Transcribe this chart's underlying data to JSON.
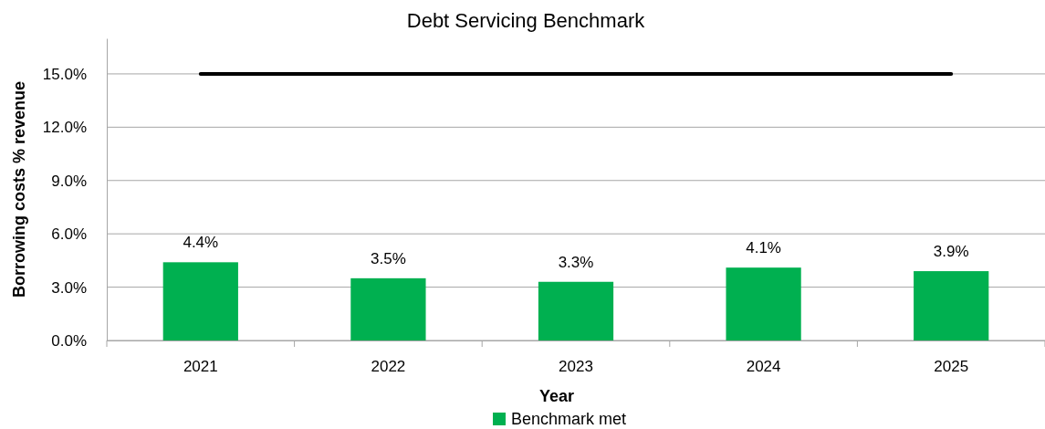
{
  "chart_data": {
    "type": "bar",
    "title": "Debt Servicing Benchmark",
    "xlabel": "Year",
    "ylabel": "Borrowing costs % revenue",
    "categories": [
      "2021",
      "2022",
      "2023",
      "2024",
      "2025"
    ],
    "series": [
      {
        "name": "Benchmark met",
        "color": "#00b050",
        "values": [
          4.4,
          3.5,
          3.3,
          4.1,
          3.9
        ]
      },
      {
        "type": "line",
        "color": "#000000",
        "values": [
          15,
          15,
          15,
          15,
          15
        ]
      }
    ],
    "value_labels": [
      "4.4%",
      "3.5%",
      "3.3%",
      "4.1%",
      "3.9%"
    ],
    "ylim": [
      0,
      17
    ],
    "yticks": [
      {
        "value": 0,
        "label": "0.0%"
      },
      {
        "value": 3,
        "label": "3.0%"
      },
      {
        "value": 6,
        "label": "6.0%"
      },
      {
        "value": 9,
        "label": "9.0%"
      },
      {
        "value": 12,
        "label": "12.0%"
      },
      {
        "value": 15,
        "label": "15.0%"
      }
    ],
    "grid": "y",
    "legend": "bottom"
  }
}
